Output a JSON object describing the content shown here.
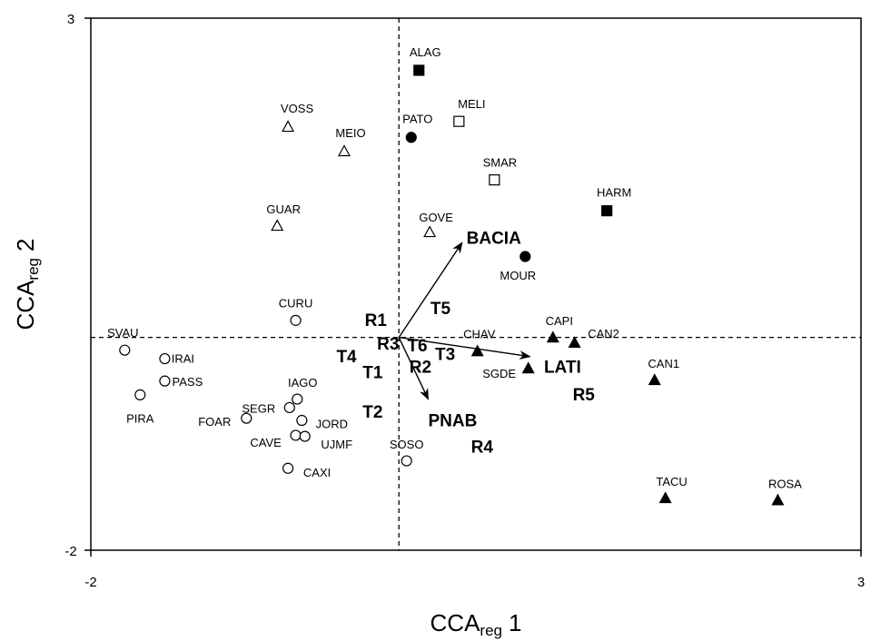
{
  "chart_data": {
    "type": "scatter",
    "x_label": {
      "main": "CCA",
      "sub": "reg",
      "suffix": "1"
    },
    "y_label": {
      "main": "CCA",
      "sub": "reg",
      "suffix": "2"
    },
    "xlim": [
      -2,
      3
    ],
    "ylim": [
      -2,
      3
    ],
    "xticks": [
      -2,
      3
    ],
    "yticks": [
      -2,
      3
    ],
    "series": [
      {
        "marker": "open-circle",
        "color": "#000000",
        "labels": [
          "SVAU",
          "IRAI",
          "PASS",
          "PIRA",
          "CURU",
          "IAGO",
          "SEGR",
          "FOAR",
          "JORD",
          "CAVE",
          "UJMF",
          "CAXI",
          "SOSO"
        ],
        "x": [
          -1.78,
          -1.52,
          -1.52,
          -1.68,
          -0.67,
          -0.66,
          -0.71,
          -0.99,
          -0.63,
          -0.67,
          -0.61,
          -0.72,
          0.05
        ],
        "y": [
          -0.12,
          -0.2,
          -0.41,
          -0.54,
          0.16,
          -0.58,
          -0.66,
          -0.76,
          -0.78,
          -0.92,
          -0.93,
          -1.23,
          -1.16
        ]
      },
      {
        "marker": "filled-circle",
        "color": "#000000",
        "labels": [
          "PATO",
          "MOUR"
        ],
        "x": [
          0.08,
          0.82
        ],
        "y": [
          1.88,
          0.76
        ]
      },
      {
        "marker": "open-triangle",
        "color": "#000000",
        "labels": [
          "VOSS",
          "MEIO",
          "GUAR",
          "GOVE"
        ],
        "x": [
          -0.72,
          -0.355,
          -0.79,
          0.2
        ],
        "y": [
          1.98,
          1.75,
          1.05,
          0.99
        ]
      },
      {
        "marker": "filled-triangle",
        "color": "#000000",
        "labels": [
          "CHAV",
          "CAPI",
          "CAN2",
          "SGDE",
          "CAN1",
          "TACU",
          "ROSA"
        ],
        "x": [
          0.51,
          1.0,
          1.14,
          0.84,
          1.66,
          1.73,
          2.46
        ],
        "y": [
          -0.13,
          0.0,
          -0.05,
          -0.29,
          -0.4,
          -1.51,
          -1.53
        ]
      },
      {
        "marker": "open-square",
        "color": "#000000",
        "labels": [
          "MELI",
          "SMAR"
        ],
        "x": [
          0.39,
          0.62
        ],
        "y": [
          2.03,
          1.48
        ]
      },
      {
        "marker": "filled-square",
        "color": "#000000",
        "labels": [
          "ALAG",
          "HARM"
        ],
        "x": [
          0.13,
          1.35
        ],
        "y": [
          2.51,
          1.19
        ]
      }
    ],
    "arrows": [
      {
        "label": "BACIA",
        "x": 0.41,
        "y": 0.89
      },
      {
        "label": "LATI",
        "x": 0.85,
        "y": -0.18
      },
      {
        "label": "PNAB",
        "x": 0.19,
        "y": -0.58
      }
    ],
    "supplementary": [
      {
        "label": "R1",
        "x": -0.15,
        "y": 0.15
      },
      {
        "label": "T5",
        "x": 0.27,
        "y": 0.26
      },
      {
        "label": "R3",
        "x": -0.07,
        "y": -0.07
      },
      {
        "label": "T6",
        "x": 0.12,
        "y": -0.09
      },
      {
        "label": "T3",
        "x": 0.3,
        "y": -0.17
      },
      {
        "label": "T4",
        "x": -0.34,
        "y": -0.19
      },
      {
        "label": "R2",
        "x": 0.14,
        "y": -0.29
      },
      {
        "label": "T1",
        "x": -0.17,
        "y": -0.34
      },
      {
        "label": "T2",
        "x": -0.17,
        "y": -0.71
      },
      {
        "label": "R4",
        "x": 0.54,
        "y": -1.04
      },
      {
        "label": "R5",
        "x": 1.2,
        "y": -0.55
      }
    ]
  }
}
